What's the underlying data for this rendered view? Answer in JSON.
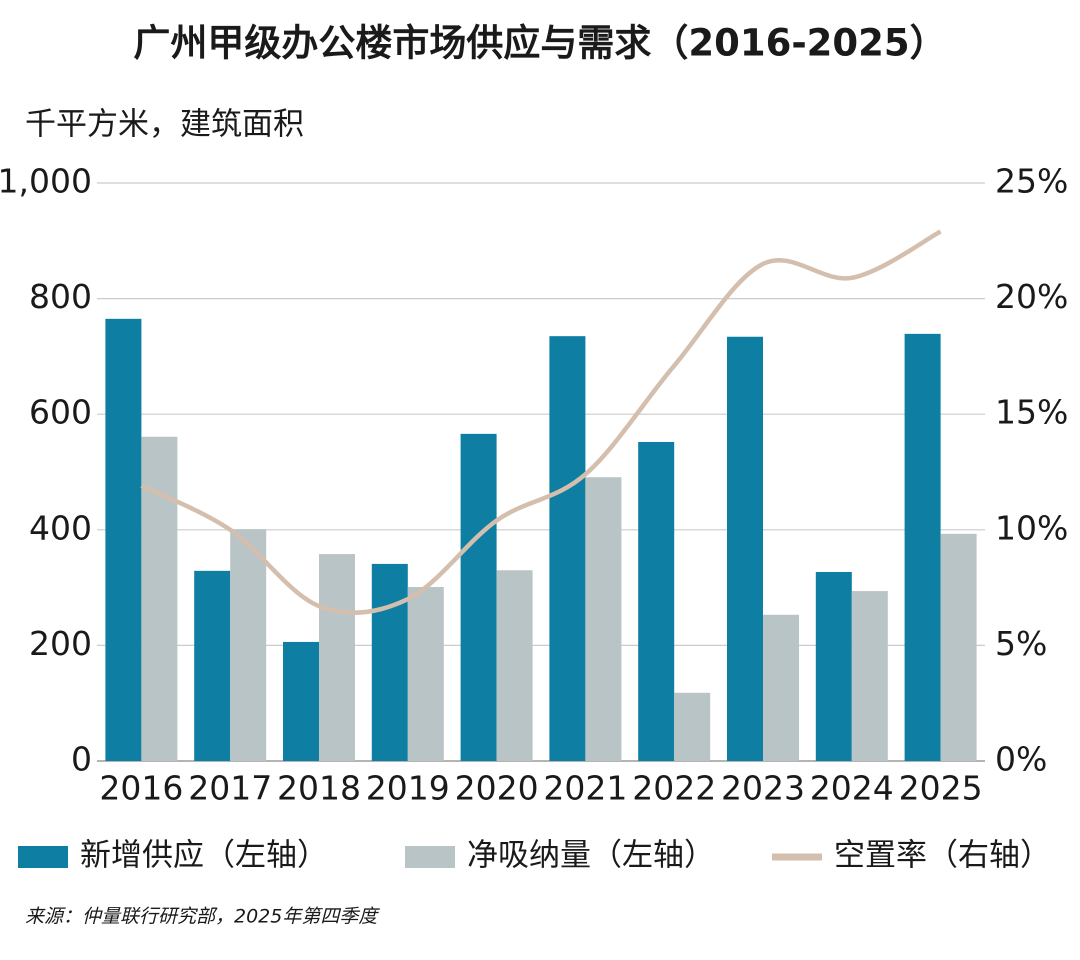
{
  "chart_data": {
    "type": "bar-line",
    "title": "广州甲级办公楼市场供应与需求（2016-2025）",
    "y_label": "千平方米，建筑面积",
    "source": "来源：仲量联行研究部，2025年第四季度",
    "categories": [
      "2016",
      "2017",
      "2018",
      "2019",
      "2020",
      "2021",
      "2022",
      "2023",
      "2024",
      "2025"
    ],
    "series": [
      {
        "name": "新增供应（左轴）",
        "color": "#0e7ea3",
        "type": "bar",
        "values": [
          765,
          329,
          206,
          341,
          566,
          735,
          552,
          734,
          327,
          739
        ]
      },
      {
        "name": "净吸纳量（左轴）",
        "color": "#b9c4c6",
        "type": "bar",
        "values": [
          561,
          401,
          358,
          301,
          330,
          491,
          118,
          253,
          294,
          393
        ]
      },
      {
        "name": "空置率（右轴）",
        "color": "#d4bfae",
        "type": "line",
        "axis": "y2",
        "values": [
          11.9,
          10.0,
          6.7,
          7.0,
          10.4,
          12.4,
          17.1,
          21.5,
          20.9,
          22.9
        ]
      }
    ],
    "ylim": [
      0,
      1000
    ],
    "yticks": [
      0,
      200,
      400,
      600,
      800,
      {
        "value": 1000,
        "label": "1,000"
      }
    ],
    "y2lim": [
      0,
      25
    ],
    "y2ticks": [
      {
        "value": 0,
        "label": "0%"
      },
      {
        "value": 5,
        "label": "5%"
      },
      {
        "value": 10,
        "label": "10%"
      },
      {
        "value": 15,
        "label": "15%"
      },
      {
        "value": 20,
        "label": "20%"
      },
      {
        "value": 25,
        "label": "25%"
      }
    ],
    "grid": true
  }
}
